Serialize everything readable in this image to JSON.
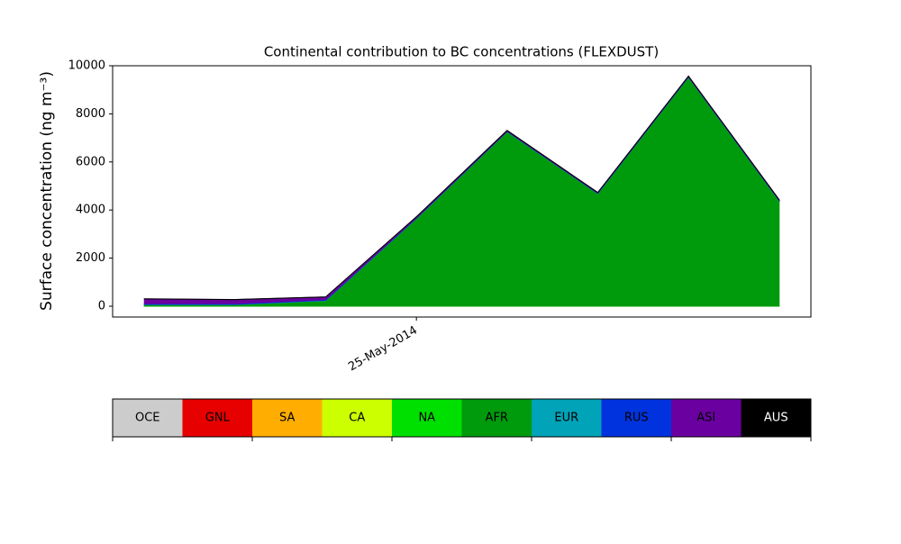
{
  "chart_data": {
    "type": "stacked-area",
    "title": "Continental contribution to BC concentrations (FLEXDUST)",
    "y_label": "Surface concentration (ng m⁻³)",
    "categories": [
      null,
      null,
      null,
      "25-May-2014",
      null,
      null,
      null,
      null
    ],
    "series": [
      {
        "name": "OCE",
        "color": "#cccccc",
        "values": [
          0,
          0,
          0,
          0,
          0,
          0,
          0,
          0
        ]
      },
      {
        "name": "GNL",
        "color": "#e60000",
        "values": [
          0,
          0,
          0,
          0,
          0,
          0,
          0,
          0
        ]
      },
      {
        "name": "SA",
        "color": "#ffad00",
        "values": [
          0,
          0,
          0,
          0,
          0,
          0,
          0,
          0
        ]
      },
      {
        "name": "CA",
        "color": "#ccff00",
        "values": [
          0,
          0,
          0,
          0,
          0,
          0,
          0,
          0
        ]
      },
      {
        "name": "NA",
        "color": "#00e000",
        "values": [
          5,
          5,
          5,
          5,
          5,
          5,
          5,
          5
        ]
      },
      {
        "name": "AFR",
        "color": "#009a0d",
        "values": [
          60,
          60,
          230,
          3640,
          7250,
          4680,
          9520,
          4380
        ]
      },
      {
        "name": "EUR",
        "color": "#00a3b8",
        "values": [
          10,
          10,
          10,
          10,
          10,
          10,
          10,
          10
        ]
      },
      {
        "name": "RUS",
        "color": "#0033dd",
        "values": [
          30,
          30,
          30,
          20,
          10,
          10,
          10,
          10
        ]
      },
      {
        "name": "ASI",
        "color": "#6a00a0",
        "values": [
          200,
          170,
          110,
          40,
          30,
          20,
          20,
          20
        ]
      },
      {
        "name": "AUS",
        "color": "#000000",
        "values": [
          5,
          5,
          5,
          5,
          5,
          5,
          5,
          5
        ]
      }
    ],
    "ylim": [
      -450,
      10000
    ],
    "yticks": [
      0,
      2000,
      4000,
      6000,
      8000,
      10000
    ]
  }
}
